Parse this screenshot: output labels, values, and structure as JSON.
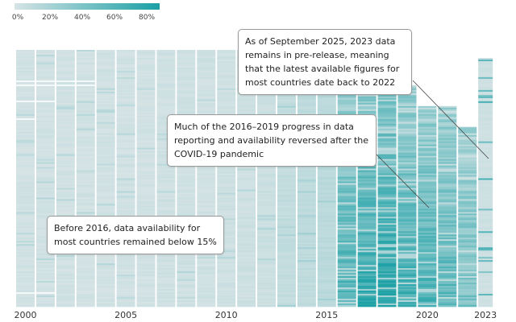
{
  "chart_data": {
    "type": "heatmap",
    "title": "",
    "xlabel": "",
    "ylabel": "",
    "colorscale": {
      "min_color": "#d6e3e5",
      "max_color": "#1aa0a5",
      "ticks": [
        "0%",
        "20%",
        "40%",
        "60%",
        "80%"
      ],
      "tick_values": [
        0,
        20,
        40,
        60,
        80
      ],
      "range": [
        0,
        90
      ]
    },
    "years": [
      2000,
      2001,
      2002,
      2003,
      2004,
      2005,
      2006,
      2007,
      2008,
      2009,
      2010,
      2011,
      2012,
      2013,
      2014,
      2015,
      2016,
      2017,
      2018,
      2019,
      2020,
      2021,
      2022,
      2023
    ],
    "x_tick_labels": [
      "2000",
      "2005",
      "2010",
      "2015",
      "2020",
      "2023"
    ],
    "typical_availability_by_year_pct": [
      3,
      3,
      3,
      3,
      3,
      3,
      3,
      4,
      4,
      4,
      4,
      5,
      6,
      10,
      12,
      14,
      45,
      55,
      60,
      50,
      45,
      40,
      30,
      5
    ],
    "annotations": [
      {
        "id": "annotation-2023",
        "text": "As of September 2025, 2023 data remains in pre-release, meaning that the latest available figures for most countries date back to 2022"
      },
      {
        "id": "annotation-covid",
        "text": "Much of the 2016–2019 progress in data reporting and availability reversed after the COVID-19 pandemic"
      },
      {
        "id": "annotation-pre2016",
        "text": "Before 2016, data availability for most countries remained below 15%"
      }
    ]
  }
}
